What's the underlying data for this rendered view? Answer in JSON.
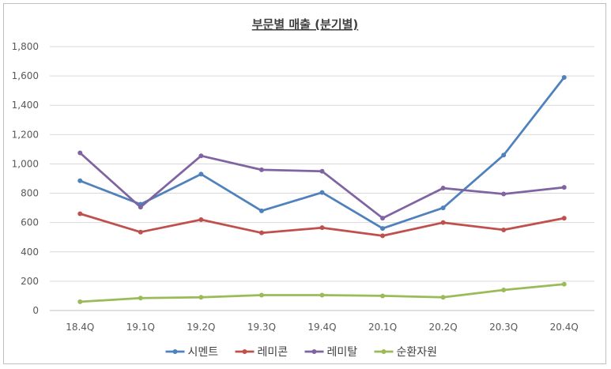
{
  "chart_data": {
    "type": "line",
    "title": "부문별 매출 (분기별)",
    "categories": [
      "18.4Q",
      "19.1Q",
      "19.2Q",
      "19.3Q",
      "19.4Q",
      "20.1Q",
      "20.2Q",
      "20.3Q",
      "20.4Q"
    ],
    "ylim": [
      0,
      1800
    ],
    "yticks": [
      0,
      200,
      400,
      600,
      800,
      1000,
      1200,
      1400,
      1600,
      1800
    ],
    "ytick_labels": [
      "0",
      "200",
      "400",
      "600",
      "800",
      "1,000",
      "1,200",
      "1,400",
      "1,600",
      "1,800"
    ],
    "grid": true,
    "legend_position": "bottom",
    "series": [
      {
        "name": "시멘트",
        "color": "#4f81bd",
        "values": [
          885,
          725,
          930,
          680,
          805,
          560,
          700,
          1060,
          1590
        ]
      },
      {
        "name": "레미콘",
        "color": "#c0504d",
        "values": [
          660,
          535,
          620,
          530,
          565,
          510,
          600,
          550,
          630
        ]
      },
      {
        "name": "레미탈",
        "color": "#8064a2",
        "values": [
          1075,
          705,
          1055,
          960,
          950,
          630,
          835,
          795,
          840
        ]
      },
      {
        "name": "순환자원",
        "color": "#9bbb59",
        "values": [
          60,
          85,
          90,
          105,
          105,
          100,
          90,
          140,
          180
        ]
      }
    ]
  }
}
